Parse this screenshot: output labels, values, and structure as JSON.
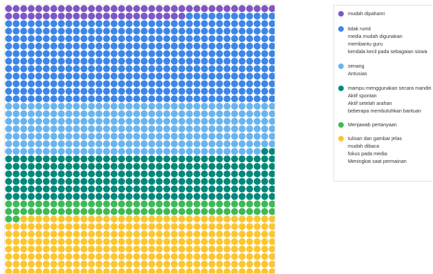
{
  "chart_data": {
    "type": "waffle",
    "title": "",
    "legend_position": "right",
    "grid": {
      "columns": 36,
      "rows": 36
    },
    "series": [
      {
        "color": "#7e57c2",
        "labels": [
          "mudah dipahami"
        ],
        "count": 60
      },
      {
        "color": "#3d86e8",
        "labels": [
          "tidak rumit",
          "media mudah digunakan",
          "membantu guru",
          "kendala kecil pada sebagaian siswa"
        ],
        "count": 408
      },
      {
        "color": "#6ab4ee",
        "labels": [
          "senang",
          "Antusias"
        ],
        "count": 250
      },
      {
        "color": "#00897b",
        "labels": [
          "mampu menggunakan secara mandiri",
          "Aktif spontan",
          "Aktif setelah arahan",
          "beberapa membutuhkan bantuan"
        ],
        "count": 218
      },
      {
        "color": "#3dba55",
        "labels": [
          "Menjawab pertanyaan"
        ],
        "count": 74
      },
      {
        "color": "#fbc630",
        "labels": [
          "tulisan dan gambar jelas",
          "mudah dibaca",
          "fokus pada media",
          "Meningkat saat permainan"
        ],
        "count": 286
      }
    ]
  }
}
